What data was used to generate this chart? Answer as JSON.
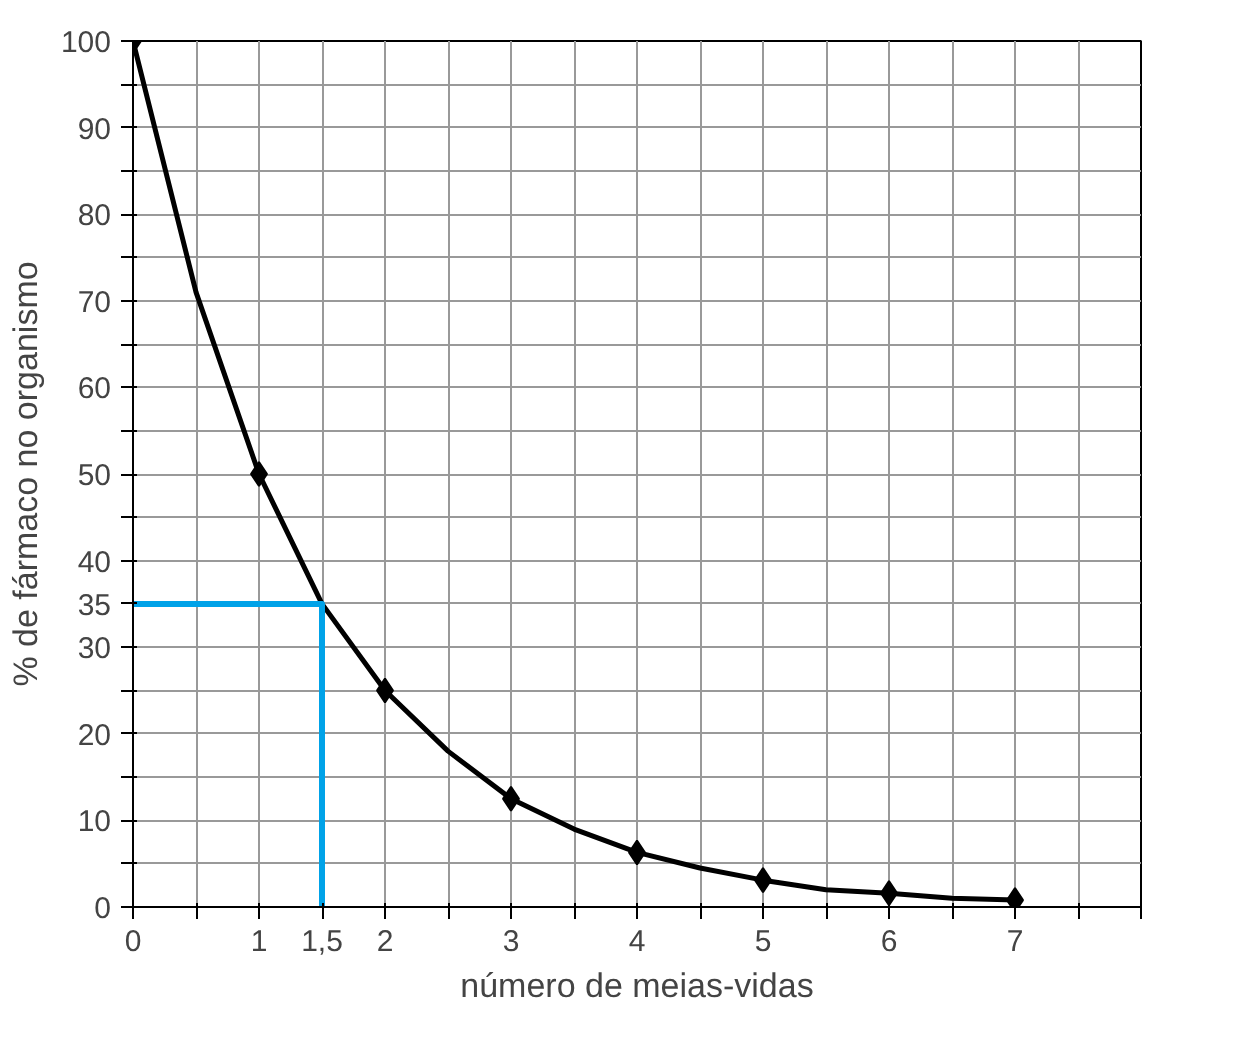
{
  "chart_data": {
    "type": "line",
    "xlabel": "número de meias-vidas",
    "ylabel": "% de fármaco no organismo",
    "xlim": [
      0,
      8
    ],
    "ylim": [
      0,
      100
    ],
    "xticks": [
      0,
      {
        "value": 0.5,
        "label": null
      },
      1,
      {
        "value": 1.5,
        "label": "1,5"
      },
      2,
      {
        "value": 2.5,
        "label": null
      },
      3,
      {
        "value": 3.5,
        "label": null
      },
      4,
      {
        "value": 4.5,
        "label": null
      },
      5,
      {
        "value": 5.5,
        "label": null
      },
      6,
      {
        "value": 6.5,
        "label": null
      },
      7,
      {
        "value": 7.5,
        "label": null
      },
      {
        "value": 8,
        "label": null
      }
    ],
    "yticks": [
      0,
      {
        "value": 5,
        "label": null
      },
      10,
      {
        "value": 15,
        "label": null
      },
      20,
      {
        "value": 25,
        "label": null
      },
      30,
      {
        "value": 35,
        "label": "35"
      },
      40,
      {
        "value": 45,
        "label": null
      },
      50,
      {
        "value": 55,
        "label": null
      },
      60,
      {
        "value": 65,
        "label": null
      },
      70,
      {
        "value": 75,
        "label": null
      },
      80,
      {
        "value": 85,
        "label": null
      },
      90,
      {
        "value": 95,
        "label": null
      },
      100
    ],
    "grid": true,
    "series": [
      {
        "color": "#000000",
        "marker": "none",
        "x": [
          0,
          0.5,
          1,
          1.5,
          2,
          2.5,
          3,
          3.5,
          4,
          4.5,
          5,
          5.5,
          6,
          6.5,
          7
        ],
        "values": [
          100,
          71,
          50,
          35,
          25,
          18,
          12.5,
          9,
          6.3,
          4.5,
          3.1,
          2,
          1.6,
          1,
          0.8
        ]
      },
      {
        "type": "scatter",
        "color": "#000000",
        "marker": "diamond",
        "x": [
          0,
          1,
          2,
          3,
          4,
          5,
          6,
          7
        ],
        "values": [
          100,
          50,
          25,
          12.5,
          6.3,
          3.1,
          1.6,
          0.8
        ]
      },
      {
        "type": "line",
        "color": "#00a2e8",
        "marker": "none",
        "x": [
          0,
          1.5,
          1.5
        ],
        "values": [
          35,
          35,
          0
        ]
      }
    ]
  }
}
